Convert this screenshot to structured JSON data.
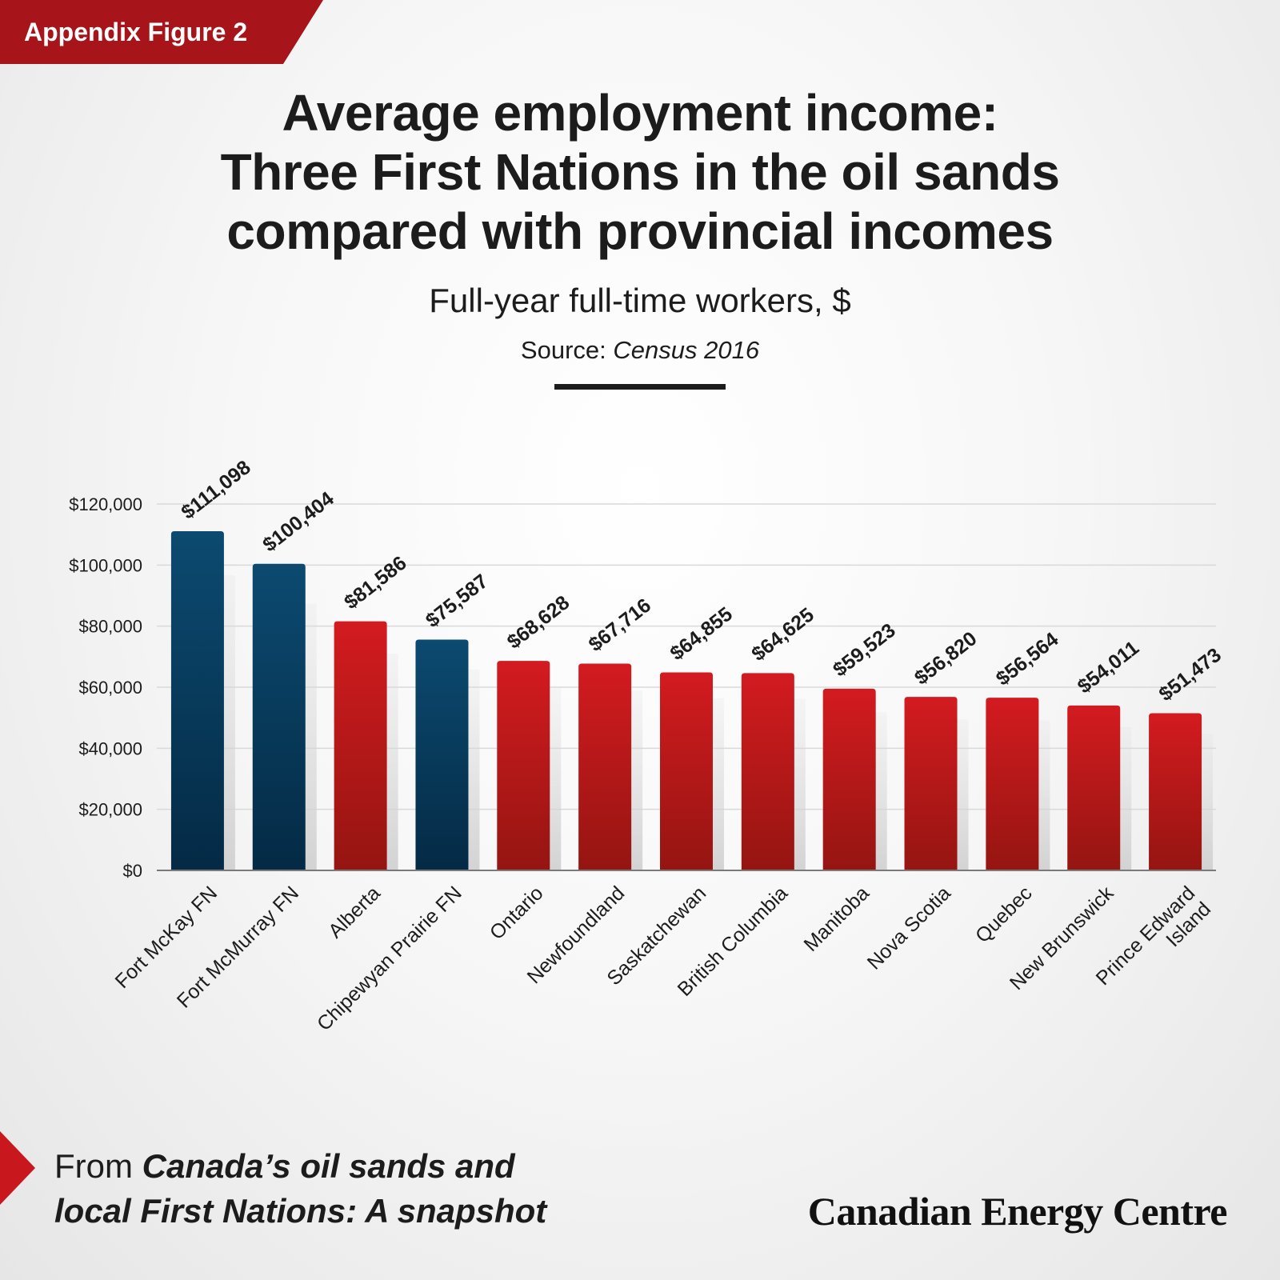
{
  "header": {
    "tag": "Appendix Figure 2",
    "title_lines": [
      "Average employment income:",
      "Three First Nations in the oil sands",
      "compared with provincial incomes"
    ],
    "subtitle": "Full-year full-time workers, $",
    "source_label": "Source:",
    "source_value": "Census 2016"
  },
  "colors": {
    "tag": "#a7141a",
    "first_nation_top": "#0c4a70",
    "first_nation_bottom": "#042a45",
    "province_top": "#d31b20",
    "province_bottom": "#951511",
    "arrow": "#c8171d"
  },
  "chart_data": {
    "type": "bar",
    "categories": [
      "Fort McKay FN",
      "Fort McMurray FN",
      "Alberta",
      "Chipewyan Prairie FN",
      "Ontario",
      "Newfoundland",
      "Saskatchewan",
      "British Columbia",
      "Manitoba",
      "Nova Scotia",
      "Quebec",
      "New Brunswick",
      "Prince Edward Island"
    ],
    "values": [
      111098,
      100404,
      81586,
      75587,
      68628,
      67716,
      64855,
      64625,
      59523,
      56820,
      56564,
      54011,
      51473
    ],
    "value_labels": [
      "$111,098",
      "$100,404",
      "$81,586",
      "$75,587",
      "$68,628",
      "$67,716",
      "$64,855",
      "$64,625",
      "$59,523",
      "$56,820",
      "$56,564",
      "$54,011",
      "$51,473"
    ],
    "group": [
      "first_nation",
      "first_nation",
      "province",
      "first_nation",
      "province",
      "province",
      "province",
      "province",
      "province",
      "province",
      "province",
      "province",
      "province"
    ],
    "ylim": [
      0,
      120000
    ],
    "yticks": [
      0,
      20000,
      40000,
      60000,
      80000,
      100000,
      120000
    ],
    "ytick_labels": [
      "$0",
      "$20,000",
      "$40,000",
      "$60,000",
      "$80,000",
      "$100,000",
      "$120,000"
    ],
    "grid": true
  },
  "footer": {
    "from": "From",
    "publication_line1": "Canada’s oil sands and",
    "publication_line2": "local First Nations: A snapshot",
    "brand": "Canadian Energy Centre"
  }
}
